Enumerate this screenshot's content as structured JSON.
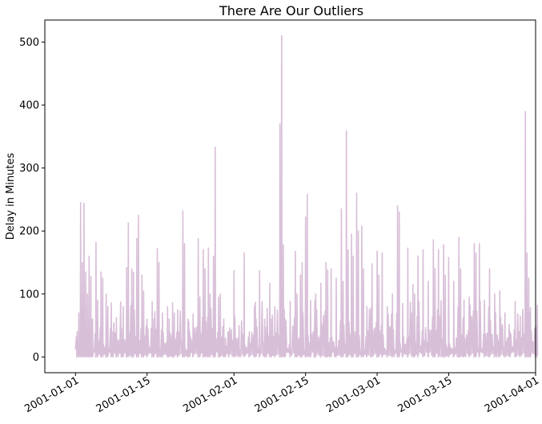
{
  "chart_data": {
    "type": "line",
    "title": "There Are Our Outliers",
    "xlabel": "",
    "ylabel": "Delay in Minutes",
    "x_type": "date",
    "xlim": [
      "2000-12-26",
      "2001-04-01"
    ],
    "ylim": [
      -25,
      535
    ],
    "grid": false,
    "legend": "none",
    "x_ticks": [
      "2001-01-01",
      "2001-01-15",
      "2001-02-01",
      "2001-02-15",
      "2001-03-01",
      "2001-03-15",
      "2001-04-01"
    ],
    "y_ticks": [
      0,
      100,
      200,
      300,
      400,
      500
    ],
    "series": [
      {
        "color": "#d8bfd8",
        "points": [
          [
            "2001-01-01",
            12
          ],
          [
            "2001-01-01",
            40
          ],
          [
            "2001-01-01",
            70
          ],
          [
            "2001-01-02",
            245
          ],
          [
            "2001-01-02",
            150
          ],
          [
            "2001-01-02",
            244
          ],
          [
            "2001-01-03",
            135
          ],
          [
            "2001-01-03",
            100
          ],
          [
            "2001-01-03",
            160
          ],
          [
            "2001-01-04",
            128
          ],
          [
            "2001-01-04",
            60
          ],
          [
            "2001-01-05",
            182
          ],
          [
            "2001-01-05",
            90
          ],
          [
            "2001-01-06",
            135
          ],
          [
            "2001-01-06",
            125
          ],
          [
            "2001-01-07",
            100
          ],
          [
            "2001-01-07",
            80
          ],
          [
            "2001-01-08",
            86
          ],
          [
            "2001-01-08",
            40
          ],
          [
            "2001-01-09",
            62
          ],
          [
            "2001-01-10",
            45
          ],
          [
            "2001-01-10",
            80
          ],
          [
            "2001-01-11",
            142
          ],
          [
            "2001-01-11",
            213
          ],
          [
            "2001-01-12",
            140
          ],
          [
            "2001-01-12",
            135
          ],
          [
            "2001-01-13",
            188
          ],
          [
            "2001-01-13",
            225
          ],
          [
            "2001-01-14",
            130
          ],
          [
            "2001-01-14",
            105
          ],
          [
            "2001-01-15",
            60
          ],
          [
            "2001-01-16",
            88
          ],
          [
            "2001-01-16",
            60
          ],
          [
            "2001-01-17",
            172
          ],
          [
            "2001-01-17",
            150
          ],
          [
            "2001-01-18",
            70
          ],
          [
            "2001-01-19",
            80
          ],
          [
            "2001-01-19",
            60
          ],
          [
            "2001-01-20",
            86
          ],
          [
            "2001-01-20",
            70
          ],
          [
            "2001-01-21",
            75
          ],
          [
            "2001-01-22",
            232
          ],
          [
            "2001-01-22",
            180
          ],
          [
            "2001-01-23",
            60
          ],
          [
            "2001-01-23",
            40
          ],
          [
            "2001-01-24",
            68
          ],
          [
            "2001-01-25",
            188
          ],
          [
            "2001-01-25",
            95
          ],
          [
            "2001-01-26",
            170
          ],
          [
            "2001-01-26",
            140
          ],
          [
            "2001-01-27",
            173
          ],
          [
            "2001-01-27",
            100
          ],
          [
            "2001-01-28",
            160
          ],
          [
            "2001-01-28",
            333
          ],
          [
            "2001-01-29",
            95
          ],
          [
            "2001-01-29",
            100
          ],
          [
            "2001-01-30",
            60
          ],
          [
            "2001-01-30",
            30
          ],
          [
            "2001-01-31",
            40
          ],
          [
            "2001-02-01",
            137
          ],
          [
            "2001-02-02",
            50
          ],
          [
            "2001-02-03",
            165
          ],
          [
            "2001-02-04",
            40
          ],
          [
            "2001-02-05",
            80
          ],
          [
            "2001-02-05",
            60
          ],
          [
            "2001-02-06",
            137
          ],
          [
            "2001-02-07",
            60
          ],
          [
            "2001-02-07",
            30
          ],
          [
            "2001-02-08",
            117
          ],
          [
            "2001-02-08",
            60
          ],
          [
            "2001-02-09",
            80
          ],
          [
            "2001-02-10",
            370
          ],
          [
            "2001-02-10",
            510
          ],
          [
            "2001-02-10",
            178
          ],
          [
            "2001-02-11",
            60
          ],
          [
            "2001-02-12",
            88
          ],
          [
            "2001-02-13",
            168
          ],
          [
            "2001-02-13",
            100
          ],
          [
            "2001-02-14",
            130
          ],
          [
            "2001-02-14",
            150
          ],
          [
            "2001-02-15",
            222
          ],
          [
            "2001-02-15",
            258
          ],
          [
            "2001-02-16",
            90
          ],
          [
            "2001-02-17",
            100
          ],
          [
            "2001-02-18",
            117
          ],
          [
            "2001-02-19",
            150
          ],
          [
            "2001-02-19",
            138
          ],
          [
            "2001-02-20",
            140
          ],
          [
            "2001-02-21",
            125
          ],
          [
            "2001-02-22",
            235
          ],
          [
            "2001-02-22",
            120
          ],
          [
            "2001-02-23",
            359
          ],
          [
            "2001-02-23",
            170
          ],
          [
            "2001-02-24",
            195
          ],
          [
            "2001-02-24",
            160
          ],
          [
            "2001-02-25",
            260
          ],
          [
            "2001-02-25",
            200
          ],
          [
            "2001-02-26",
            208
          ],
          [
            "2001-02-26",
            140
          ],
          [
            "2001-02-27",
            80
          ],
          [
            "2001-02-28",
            148
          ],
          [
            "2001-03-01",
            168
          ],
          [
            "2001-03-01",
            130
          ],
          [
            "2001-03-02",
            165
          ],
          [
            "2001-03-03",
            80
          ],
          [
            "2001-03-04",
            100
          ],
          [
            "2001-03-05",
            240
          ],
          [
            "2001-03-05",
            230
          ],
          [
            "2001-03-06",
            85
          ],
          [
            "2001-03-07",
            173
          ],
          [
            "2001-03-08",
            115
          ],
          [
            "2001-03-08",
            100
          ],
          [
            "2001-03-09",
            160
          ],
          [
            "2001-03-10",
            170
          ],
          [
            "2001-03-11",
            120
          ],
          [
            "2001-03-12",
            186
          ],
          [
            "2001-03-12",
            140
          ],
          [
            "2001-03-13",
            170
          ],
          [
            "2001-03-14",
            178
          ],
          [
            "2001-03-14",
            130
          ],
          [
            "2001-03-15",
            158
          ],
          [
            "2001-03-16",
            120
          ],
          [
            "2001-03-17",
            190
          ],
          [
            "2001-03-17",
            140
          ],
          [
            "2001-03-18",
            90
          ],
          [
            "2001-03-19",
            95
          ],
          [
            "2001-03-20",
            180
          ],
          [
            "2001-03-20",
            165
          ],
          [
            "2001-03-21",
            180
          ],
          [
            "2001-03-22",
            90
          ],
          [
            "2001-03-23",
            140
          ],
          [
            "2001-03-24",
            100
          ],
          [
            "2001-03-25",
            105
          ],
          [
            "2001-03-26",
            70
          ],
          [
            "2001-03-27",
            40
          ],
          [
            "2001-03-28",
            88
          ],
          [
            "2001-03-29",
            65
          ],
          [
            "2001-03-30",
            390
          ],
          [
            "2001-03-30",
            165
          ],
          [
            "2001-03-30",
            125
          ],
          [
            "2001-03-31",
            78
          ],
          [
            "2001-04-01",
            48
          ],
          [
            "2001-04-01",
            82
          ]
        ]
      }
    ]
  }
}
